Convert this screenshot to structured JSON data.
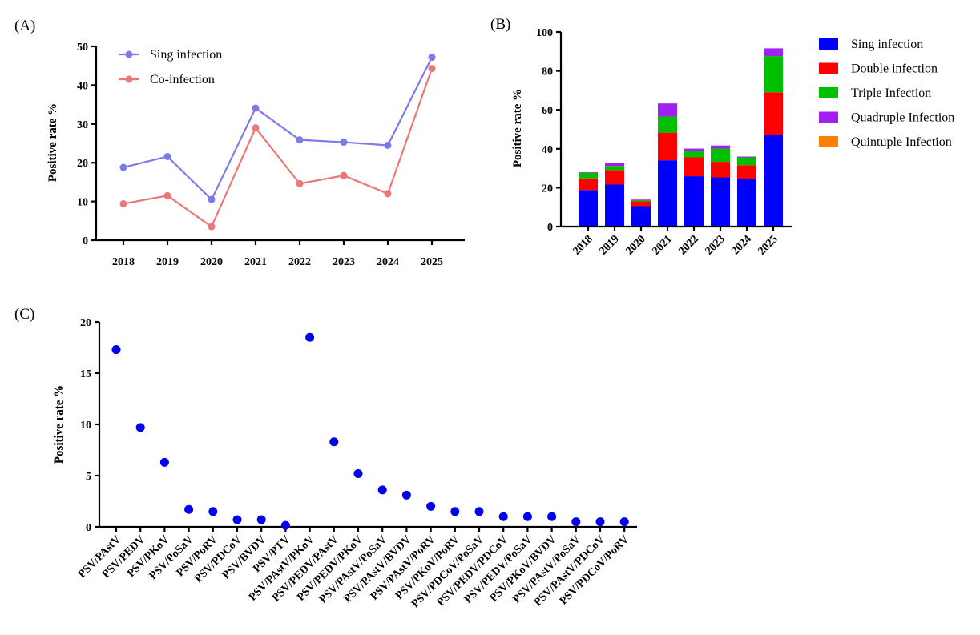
{
  "chart_data": [
    {
      "panel": "(A)",
      "type": "line",
      "categories": [
        "2018",
        "2019",
        "2020",
        "2021",
        "2022",
        "2023",
        "2024",
        "2025"
      ],
      "ylabel": "Positive rate %",
      "ylim": [
        0,
        50
      ],
      "yticks": [
        0,
        10,
        20,
        30,
        40,
        50
      ],
      "legend_position": "top-left",
      "series": [
        {
          "name": "Sing infection",
          "color": "#7b7be8",
          "values": [
            18.8,
            21.6,
            10.5,
            34.1,
            25.9,
            25.3,
            24.5,
            47.2
          ]
        },
        {
          "name": "Co-infection",
          "color": "#ec7777",
          "values": [
            9.4,
            11.5,
            3.5,
            29.0,
            14.6,
            16.7,
            12.0,
            44.3
          ]
        }
      ]
    },
    {
      "panel": "(B)",
      "type": "bar",
      "stacked": true,
      "categories": [
        "2018",
        "2019",
        "2020",
        "2021",
        "2022",
        "2023",
        "2024",
        "2025"
      ],
      "ylabel": "Positive rate %",
      "ylim": [
        0,
        100
      ],
      "yticks": [
        0,
        20,
        40,
        60,
        80,
        100
      ],
      "legend_position": "right",
      "series": [
        {
          "name": "Sing infection",
          "color": "#0000ff",
          "values": [
            18.8,
            21.6,
            10.5,
            34.1,
            25.9,
            25.3,
            24.5,
            47.2
          ]
        },
        {
          "name": "Double infection",
          "color": "#ff0000",
          "values": [
            6.0,
            7.5,
            2.5,
            14.2,
            9.7,
            8.0,
            7.1,
            21.8
          ]
        },
        {
          "name": "Triple Infection",
          "color": "#00bf00",
          "values": [
            2.9,
            2.1,
            0.6,
            8.3,
            3.5,
            6.8,
            4.0,
            18.6
          ]
        },
        {
          "name": "Quadruple Infection",
          "color": "#a020f0",
          "values": [
            0.3,
            1.6,
            0.3,
            6.7,
            1.0,
            1.6,
            0.4,
            4.0
          ]
        },
        {
          "name": "Quintuple Infection",
          "color": "#ff8000",
          "values": [
            0,
            0,
            0,
            0,
            0,
            0,
            0,
            0
          ]
        }
      ]
    },
    {
      "panel": "(C)",
      "type": "scatter",
      "categories": [
        "PSV/PAstV",
        "PSV/PEDV",
        "PSV/PKoV",
        "PSV/PoSaV",
        "PSV/PoRV",
        "PSV/PDCoV",
        "PSV/BVDV",
        "PSV/PTV",
        "PSV/PAstV/PKoV",
        "PSV/PEDV/PAstV",
        "PSV/PEDV/PKoV",
        "PSV/PAstV/PoSaV",
        "PSV/PAstV/BVDV",
        "PSV/PAstV/PoRV",
        "PSV/PKoV/PoRV",
        "PSV/PDCoV/PoSaV",
        "PSV/PEDV/PDCoV",
        "PSV/PEDV/PoSaV",
        "PSV/PKoV/BVDV",
        "PSV/PAstV/PoSaV",
        "PSV/PAstV/PDCoV",
        "PSV/PDCoV/PoRV"
      ],
      "values": [
        17.3,
        9.7,
        6.3,
        1.7,
        1.5,
        0.7,
        0.7,
        0.15,
        18.5,
        8.3,
        5.2,
        3.6,
        3.1,
        2.0,
        1.5,
        1.5,
        1.0,
        1.0,
        1.0,
        0.5,
        0.5,
        0.5
      ],
      "color": "#0000ee",
      "ylabel": "Positive rate %",
      "ylim": [
        0,
        20
      ],
      "yticks": [
        0,
        5,
        10,
        15,
        20
      ]
    }
  ]
}
